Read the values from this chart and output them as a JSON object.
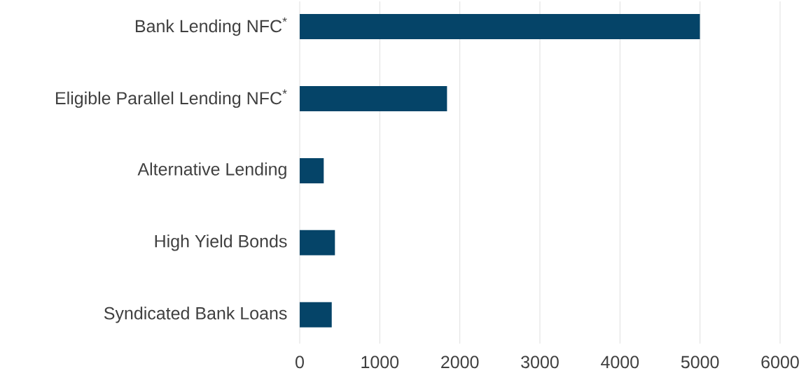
{
  "chart_data": {
    "type": "bar",
    "orientation": "horizontal",
    "categories": [
      "Bank Lending NFC$^{*}$",
      "Eligible Parallel Lending NFC$^{*}$",
      "Alternative Lending",
      "High Yield Bonds",
      "Syndicated Bank Loans"
    ],
    "values": [
      5000,
      1840,
      300,
      440,
      400
    ],
    "color": "#054468",
    "xlim": [
      0,
      6000
    ],
    "xticks": [
      0,
      1000,
      2000,
      3000,
      4000,
      5000,
      6000
    ],
    "grid": "x"
  }
}
